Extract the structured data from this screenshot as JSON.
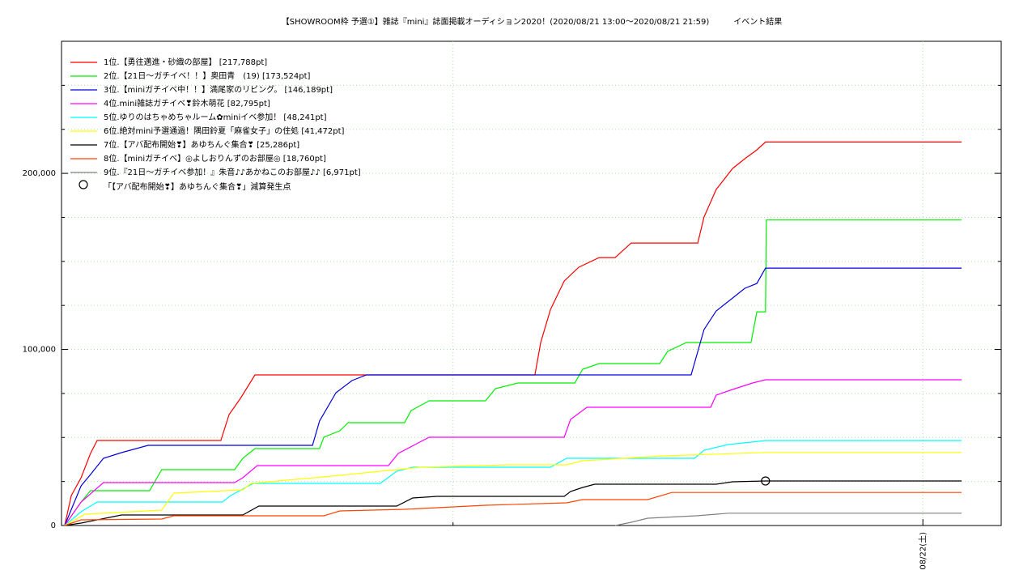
{
  "chart_data": {
    "type": "line",
    "title": "【SHOWROOM枠 予選①】雑誌『mini』誌面掲載オーディション2020！(2020/08/21 13:00〜2020/08/21 21:59)　　　イベント結果",
    "xlim": [
      2,
      26
    ],
    "xticks": [
      {
        "value": 24,
        "label": "08/22(土)"
      }
    ],
    "minor_xticks": [
      12
    ],
    "ylim": [
      0,
      275000
    ],
    "yticks": [
      0,
      {
        "value": 100000,
        "label": "100,000"
      },
      {
        "value": 200000,
        "label": "200,000"
      }
    ],
    "minor_yticks": [
      25000,
      50000,
      75000,
      125000,
      150000,
      175000,
      225000,
      250000
    ],
    "grid": true,
    "legend": "top-left",
    "series": [
      {
        "name": "1位.【勇往邁進・砂織の部屋】 [217,788pt]",
        "color": "#ff0000",
        "x": [
          2.08,
          2.25,
          2.5,
          2.74,
          2.91,
          6.07,
          6.28,
          6.57,
          6.94,
          7.04,
          14.09,
          14.24,
          14.49,
          14.84,
          15.21,
          15.73,
          16.14,
          16.55,
          18.25,
          18.41,
          18.72,
          19.14,
          19.45,
          19.76,
          19.98,
          24.99
        ],
        "values": [
          0,
          17011,
          27126,
          40920,
          48276,
          48276,
          63000,
          72184,
          85517,
          85517,
          85517,
          104000,
          122759,
          138850,
          146667,
          152184,
          152184,
          160460,
          160460,
          175172,
          190804,
          202759,
          208276,
          213333,
          217788,
          217788
        ]
      },
      {
        "name": "2位.【21日〜ガチイベ！！】奥田青　(19) [173,524pt]",
        "color": "#00ee00",
        "x": [
          2.08,
          2.5,
          2.74,
          4.25,
          4.56,
          6.42,
          6.63,
          6.94,
          8.59,
          8.7,
          9.11,
          9.32,
          10.76,
          10.93,
          11.39,
          12.83,
          13.08,
          13.66,
          15.11,
          15.31,
          15.73,
          17.28,
          17.48,
          17.96,
          19.61,
          19.76,
          19.98,
          20.0,
          24.99
        ],
        "values": [
          0,
          13333,
          19770,
          19770,
          31724,
          31724,
          38161,
          43678,
          43678,
          50115,
          53793,
          58391,
          58391,
          65287,
          70805,
          70805,
          77701,
          80920,
          80920,
          88736,
          91954,
          91954,
          98850,
          103908,
          103908,
          121379,
          121379,
          173524,
          173524
        ]
      },
      {
        "name": "3位.【miniガチイベ中！！】満尾家のリビング。 [146,189pt]",
        "color": "#0000dd",
        "x": [
          2.08,
          2.5,
          2.74,
          3.07,
          3.53,
          4.21,
          8.41,
          8.59,
          9.01,
          9.42,
          9.79,
          18.08,
          18.41,
          18.72,
          19.14,
          19.45,
          19.76,
          19.98,
          24.99
        ],
        "values": [
          0,
          22529,
          28966,
          38161,
          41379,
          45517,
          45517,
          59310,
          75402,
          82299,
          85517,
          85517,
          111264,
          121839,
          129195,
          134713,
          137471,
          146189,
          146189
        ]
      },
      {
        "name": "4位.mini雑誌ガチイベ❣鈴木萌花 [82,795pt]",
        "color": "#ff00ff",
        "x": [
          2.08,
          2.5,
          3.07,
          6.42,
          6.63,
          7.0,
          10.35,
          10.6,
          11.07,
          11.39,
          14.84,
          15.0,
          15.42,
          18.58,
          18.72,
          19.14,
          19.65,
          19.98,
          24.99
        ],
        "values": [
          0,
          13333,
          24368,
          24368,
          27126,
          34023,
          34023,
          40920,
          46437,
          50115,
          50115,
          60230,
          67126,
          67126,
          74023,
          77241,
          80920,
          82795,
          82795
        ]
      },
      {
        "name": "5位.ゆりのはちゃめちゃルーム✿miniイベ参加！ [48,241pt]",
        "color": "#00ffff",
        "x": [
          2.08,
          2.5,
          2.91,
          6.11,
          6.32,
          6.9,
          10.14,
          10.56,
          10.97,
          14.49,
          14.9,
          18.17,
          18.41,
          19.03,
          19.98,
          24.99
        ],
        "values": [
          0,
          7816,
          13333,
          13333,
          17011,
          23908,
          23908,
          30805,
          33103,
          33103,
          38161,
          38161,
          42759,
          45977,
          48241,
          48241
        ]
      },
      {
        "name": "6位.絶対mini予選通過！隅田鈴夏「麻雀女子」の住処 [41,472pt]",
        "color": "#ffff00",
        "x": [
          2.08,
          2.6,
          4.56,
          4.87,
          6.63,
          6.84,
          8.9,
          10.56,
          11.18,
          13.45,
          14.9,
          15.31,
          17.38,
          19.98,
          24.99
        ],
        "values": [
          0,
          6437,
          8736,
          18391,
          20230,
          23908,
          28046,
          31724,
          33103,
          34483,
          34483,
          36782,
          39540,
          41472,
          41472
        ]
      },
      {
        "name": "7位.【アバ配布開始❣】あゆちんぐ集合❣ [25,286pt]",
        "color": "#000000",
        "x": [
          2.08,
          2.5,
          3.12,
          3.53,
          6.63,
          7.04,
          10.56,
          10.97,
          11.59,
          14.84,
          15.0,
          15.31,
          15.62,
          18.72,
          19.14,
          19.98,
          24.99
        ],
        "values": [
          0,
          1379,
          4138,
          5977,
          5977,
          11034,
          11034,
          15632,
          16552,
          16552,
          19310,
          21609,
          23448,
          23448,
          24828,
          25286,
          25286
        ]
      },
      {
        "name": "8位.【miniガチイベ】◎よしおりんずのお部屋◎ [18,760pt]",
        "color": "#ff4500",
        "x": [
          2.08,
          2.5,
          4.56,
          4.87,
          8.7,
          9.11,
          10.76,
          12.83,
          14.9,
          15.31,
          16.97,
          17.59,
          24.99
        ],
        "values": [
          0,
          3218,
          3678,
          5517,
          5517,
          8276,
          9195,
          11494,
          12874,
          14713,
          14713,
          18760,
          18760
        ]
      },
      {
        "name": "9位.『21日〜ガチイベ参加！』朱音♪♪あかねこのお部屋♪♪ [6,971pt]",
        "color": "#808080",
        "x": [
          16.14,
          16.55,
          16.97,
          17.79,
          18.21,
          19.03,
          24.99
        ],
        "values": [
          0,
          1839,
          4138,
          5057,
          5517,
          6971,
          6971
        ]
      }
    ],
    "markers": [
      {
        "name": "「【アバ配布開始❣】あゆちんぐ集合❣」減算発生点",
        "x": 19.98,
        "y": 25286,
        "color": "#000000"
      }
    ]
  }
}
